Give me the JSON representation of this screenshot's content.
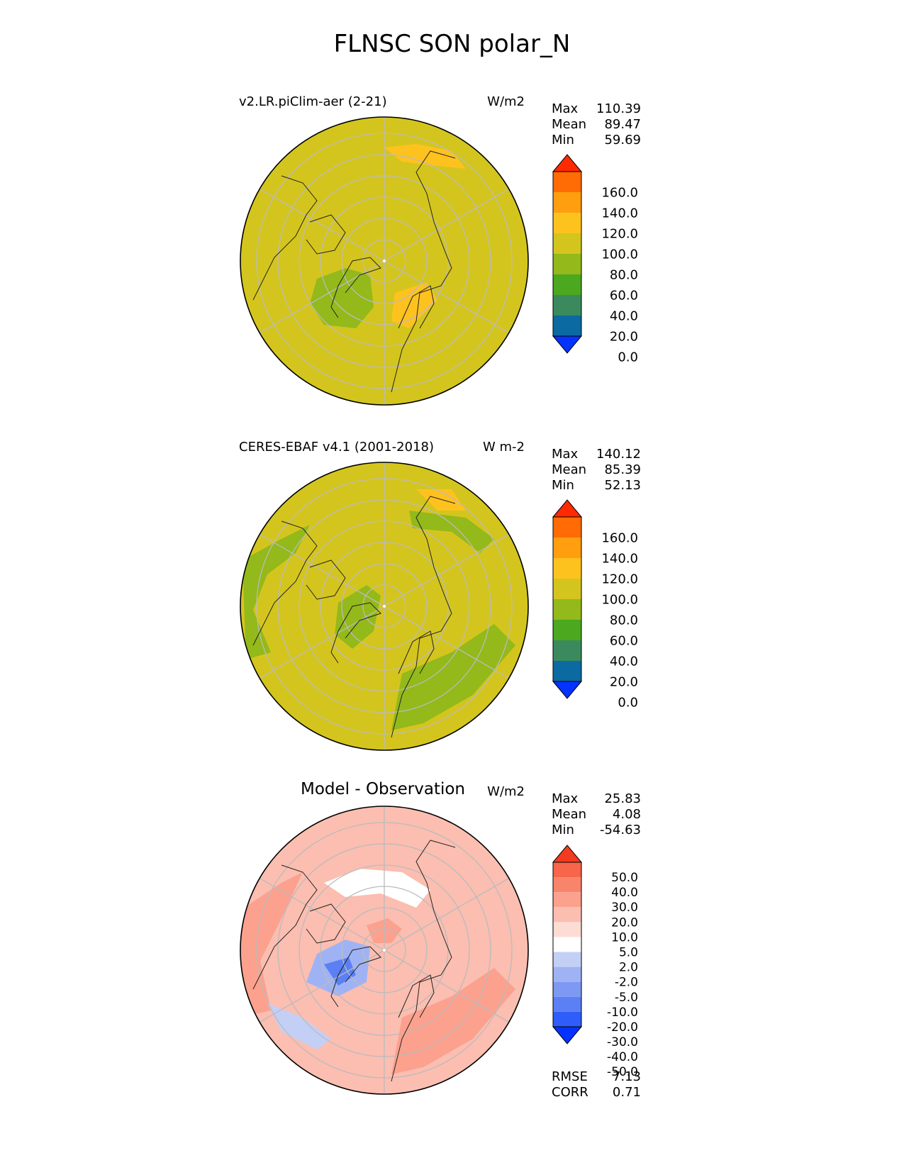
{
  "title": "FLNSC SON polar_N",
  "colors": {
    "abs_levels": [
      "#0433ff",
      "#0a6aa1",
      "#3b8a5d",
      "#4ca81f",
      "#93b91a",
      "#d4c51e",
      "#fec21f",
      "#ff9e0f",
      "#ff6b04",
      "#ff2a00"
    ],
    "diff_levels": [
      "#0433ff",
      "#2e5df9",
      "#5b80f5",
      "#7d99f4",
      "#9fb3f4",
      "#c4cff6",
      "#ffffff",
      "#fcdcd5",
      "#fbbeb1",
      "#fba18e",
      "#f9846c",
      "#f7654b",
      "#f33b1f"
    ],
    "grid": "#bbbbbb",
    "coast": "#222222"
  },
  "panels": [
    {
      "title": "v2.LR.piClim-aer (2-21)",
      "units": "W/m2",
      "stats": [
        {
          "label": "Max",
          "value": "110.39"
        },
        {
          "label": "Mean",
          "value": "89.47"
        },
        {
          "label": "Min",
          "value": "59.69"
        }
      ],
      "colorbar_ticks": [
        "160.0",
        "140.0",
        "120.0",
        "100.0",
        "80.0",
        "60.0",
        "40.0",
        "20.0",
        "0.0"
      ]
    },
    {
      "title": "CERES-EBAF v4.1 (2001-2018)",
      "units": "W m-2",
      "stats": [
        {
          "label": "Max",
          "value": "140.12"
        },
        {
          "label": "Mean",
          "value": "85.39"
        },
        {
          "label": "Min",
          "value": "52.13"
        }
      ],
      "colorbar_ticks": [
        "160.0",
        "140.0",
        "120.0",
        "100.0",
        "80.0",
        "60.0",
        "40.0",
        "20.0",
        "0.0"
      ]
    },
    {
      "title": "Model - Observation",
      "units": "W/m2",
      "stats": [
        {
          "label": "Max",
          "value": "25.83"
        },
        {
          "label": "Mean",
          "value": "4.08"
        },
        {
          "label": "Min",
          "value": "-54.63"
        }
      ],
      "colorbar_ticks": [
        "50.0",
        "40.0",
        "30.0",
        "20.0",
        "10.0",
        "5.0",
        "2.0",
        "-2.0",
        "-5.0",
        "-10.0",
        "-20.0",
        "-30.0",
        "-40.0",
        "-50.0"
      ],
      "metrics": [
        {
          "label": "RMSE",
          "value": "7.13"
        },
        {
          "label": "CORR",
          "value": "0.71"
        }
      ]
    }
  ],
  "chart_data": [
    {
      "type": "heatmap",
      "projection": "north polar stereographic",
      "title": "v2.LR.piClim-aer (2-21)",
      "units": "W/m2",
      "max": 110.39,
      "mean": 89.47,
      "min": 59.69,
      "levels": [
        0,
        20,
        40,
        60,
        80,
        100,
        120,
        140,
        160
      ],
      "colorbar_extend": "both"
    },
    {
      "type": "heatmap",
      "projection": "north polar stereographic",
      "title": "CERES-EBAF v4.1 (2001-2018)",
      "units": "W m-2",
      "max": 140.12,
      "mean": 85.39,
      "min": 52.13,
      "levels": [
        0,
        20,
        40,
        60,
        80,
        100,
        120,
        140,
        160
      ],
      "colorbar_extend": "both"
    },
    {
      "type": "heatmap",
      "projection": "north polar stereographic",
      "title": "Model - Observation",
      "units": "W/m2",
      "max": 25.83,
      "mean": 4.08,
      "min": -54.63,
      "levels": [
        -50,
        -40,
        -30,
        -20,
        -10,
        -5,
        -2,
        2,
        5,
        10,
        20,
        30,
        40,
        50
      ],
      "colorbar_extend": "both",
      "rmse": 7.13,
      "corr": 0.71
    }
  ]
}
